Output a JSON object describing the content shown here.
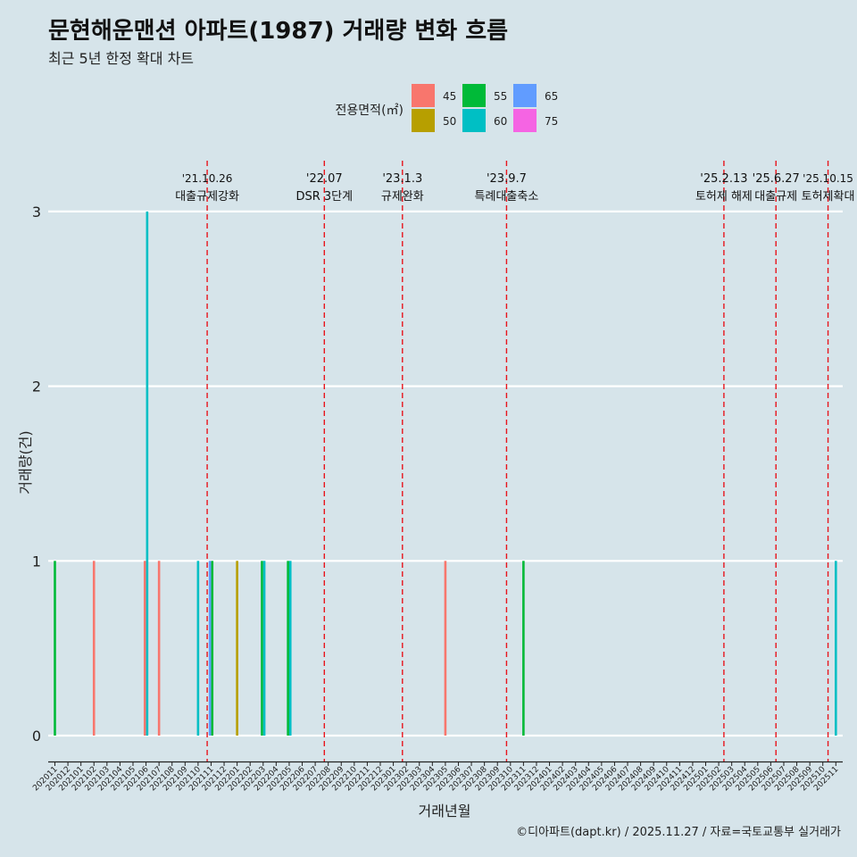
{
  "chart_data": {
    "type": "bar",
    "title": "문현해운맨션 아파트(1987) 거래량 변화 흐름",
    "subtitle": "최근 5년 한정 확대 차트",
    "xlabel": "거래년월",
    "ylabel": "거래량(건)",
    "ylim": [
      -0.15,
      3.2
    ],
    "yticks": [
      0,
      1,
      2,
      3
    ],
    "legend": {
      "title": "전용면적(㎡)",
      "position": "top",
      "entries": [
        {
          "label": "45",
          "color": "#F8766D"
        },
        {
          "label": "50",
          "color": "#B79F00"
        },
        {
          "label": "55",
          "color": "#00BA38"
        },
        {
          "label": "60",
          "color": "#00BFC4"
        },
        {
          "label": "65",
          "color": "#619CFF"
        },
        {
          "label": "75",
          "color": "#F564E3"
        }
      ]
    },
    "categories": [
      "202011",
      "202012",
      "202101",
      "202102",
      "202103",
      "202104",
      "202105",
      "202106",
      "202107",
      "202108",
      "202109",
      "202110",
      "202111",
      "202112",
      "202201",
      "202202",
      "202203",
      "202204",
      "202205",
      "202206",
      "202207",
      "202208",
      "202209",
      "202210",
      "202211",
      "202212",
      "202301",
      "202302",
      "202303",
      "202304",
      "202305",
      "202306",
      "202307",
      "202308",
      "202309",
      "202310",
      "202311",
      "202312",
      "202401",
      "202402",
      "202403",
      "202404",
      "202405",
      "202406",
      "202407",
      "202408",
      "202409",
      "202410",
      "202411",
      "202412",
      "202501",
      "202502",
      "202503",
      "202504",
      "202505",
      "202506",
      "202507",
      "202508",
      "202509",
      "202510",
      "202511"
    ],
    "bars": [
      {
        "month": "202011",
        "area": "55",
        "value": 1
      },
      {
        "month": "202102",
        "area": "45",
        "value": 1
      },
      {
        "month": "202106",
        "area": "45",
        "value": 1
      },
      {
        "month": "202106",
        "area": "60",
        "value": 3
      },
      {
        "month": "202107",
        "area": "45",
        "value": 1
      },
      {
        "month": "202110",
        "area": "60",
        "value": 1
      },
      {
        "month": "202111",
        "area": "65",
        "value": 1
      },
      {
        "month": "202111",
        "area": "55",
        "value": 1
      },
      {
        "month": "202201",
        "area": "50",
        "value": 1
      },
      {
        "month": "202203",
        "area": "55",
        "value": 1
      },
      {
        "month": "202203",
        "area": "60",
        "value": 1
      },
      {
        "month": "202205",
        "area": "55",
        "value": 1
      },
      {
        "month": "202205",
        "area": "60",
        "value": 1
      },
      {
        "month": "202305",
        "area": "45",
        "value": 1
      },
      {
        "month": "202311",
        "area": "55",
        "value": 1
      },
      {
        "month": "202511",
        "area": "60",
        "value": 1
      }
    ],
    "events": [
      {
        "date": "'21.10.26",
        "label": "대출규제강화",
        "pos": 11.7
      },
      {
        "date": "'22.07",
        "label": "DSR 3단계",
        "pos": 20.7
      },
      {
        "date": "'23.1.3",
        "label": "규제완화",
        "pos": 26.7
      },
      {
        "date": "'23.9.7",
        "label": "특례대출축소",
        "pos": 34.7
      },
      {
        "date": "'25.2.13",
        "label": "토허제 해제",
        "pos": 51.4
      },
      {
        "date": "'25.6.27",
        "label": "대출규제",
        "pos": 55.4
      },
      {
        "date": "'25.10.15",
        "label": "토허제확대",
        "pos": 59.4
      }
    ]
  },
  "credit": "©디아파트(dapt.kr) / 2025.11.27 / 자료=국토교통부 실거래가"
}
